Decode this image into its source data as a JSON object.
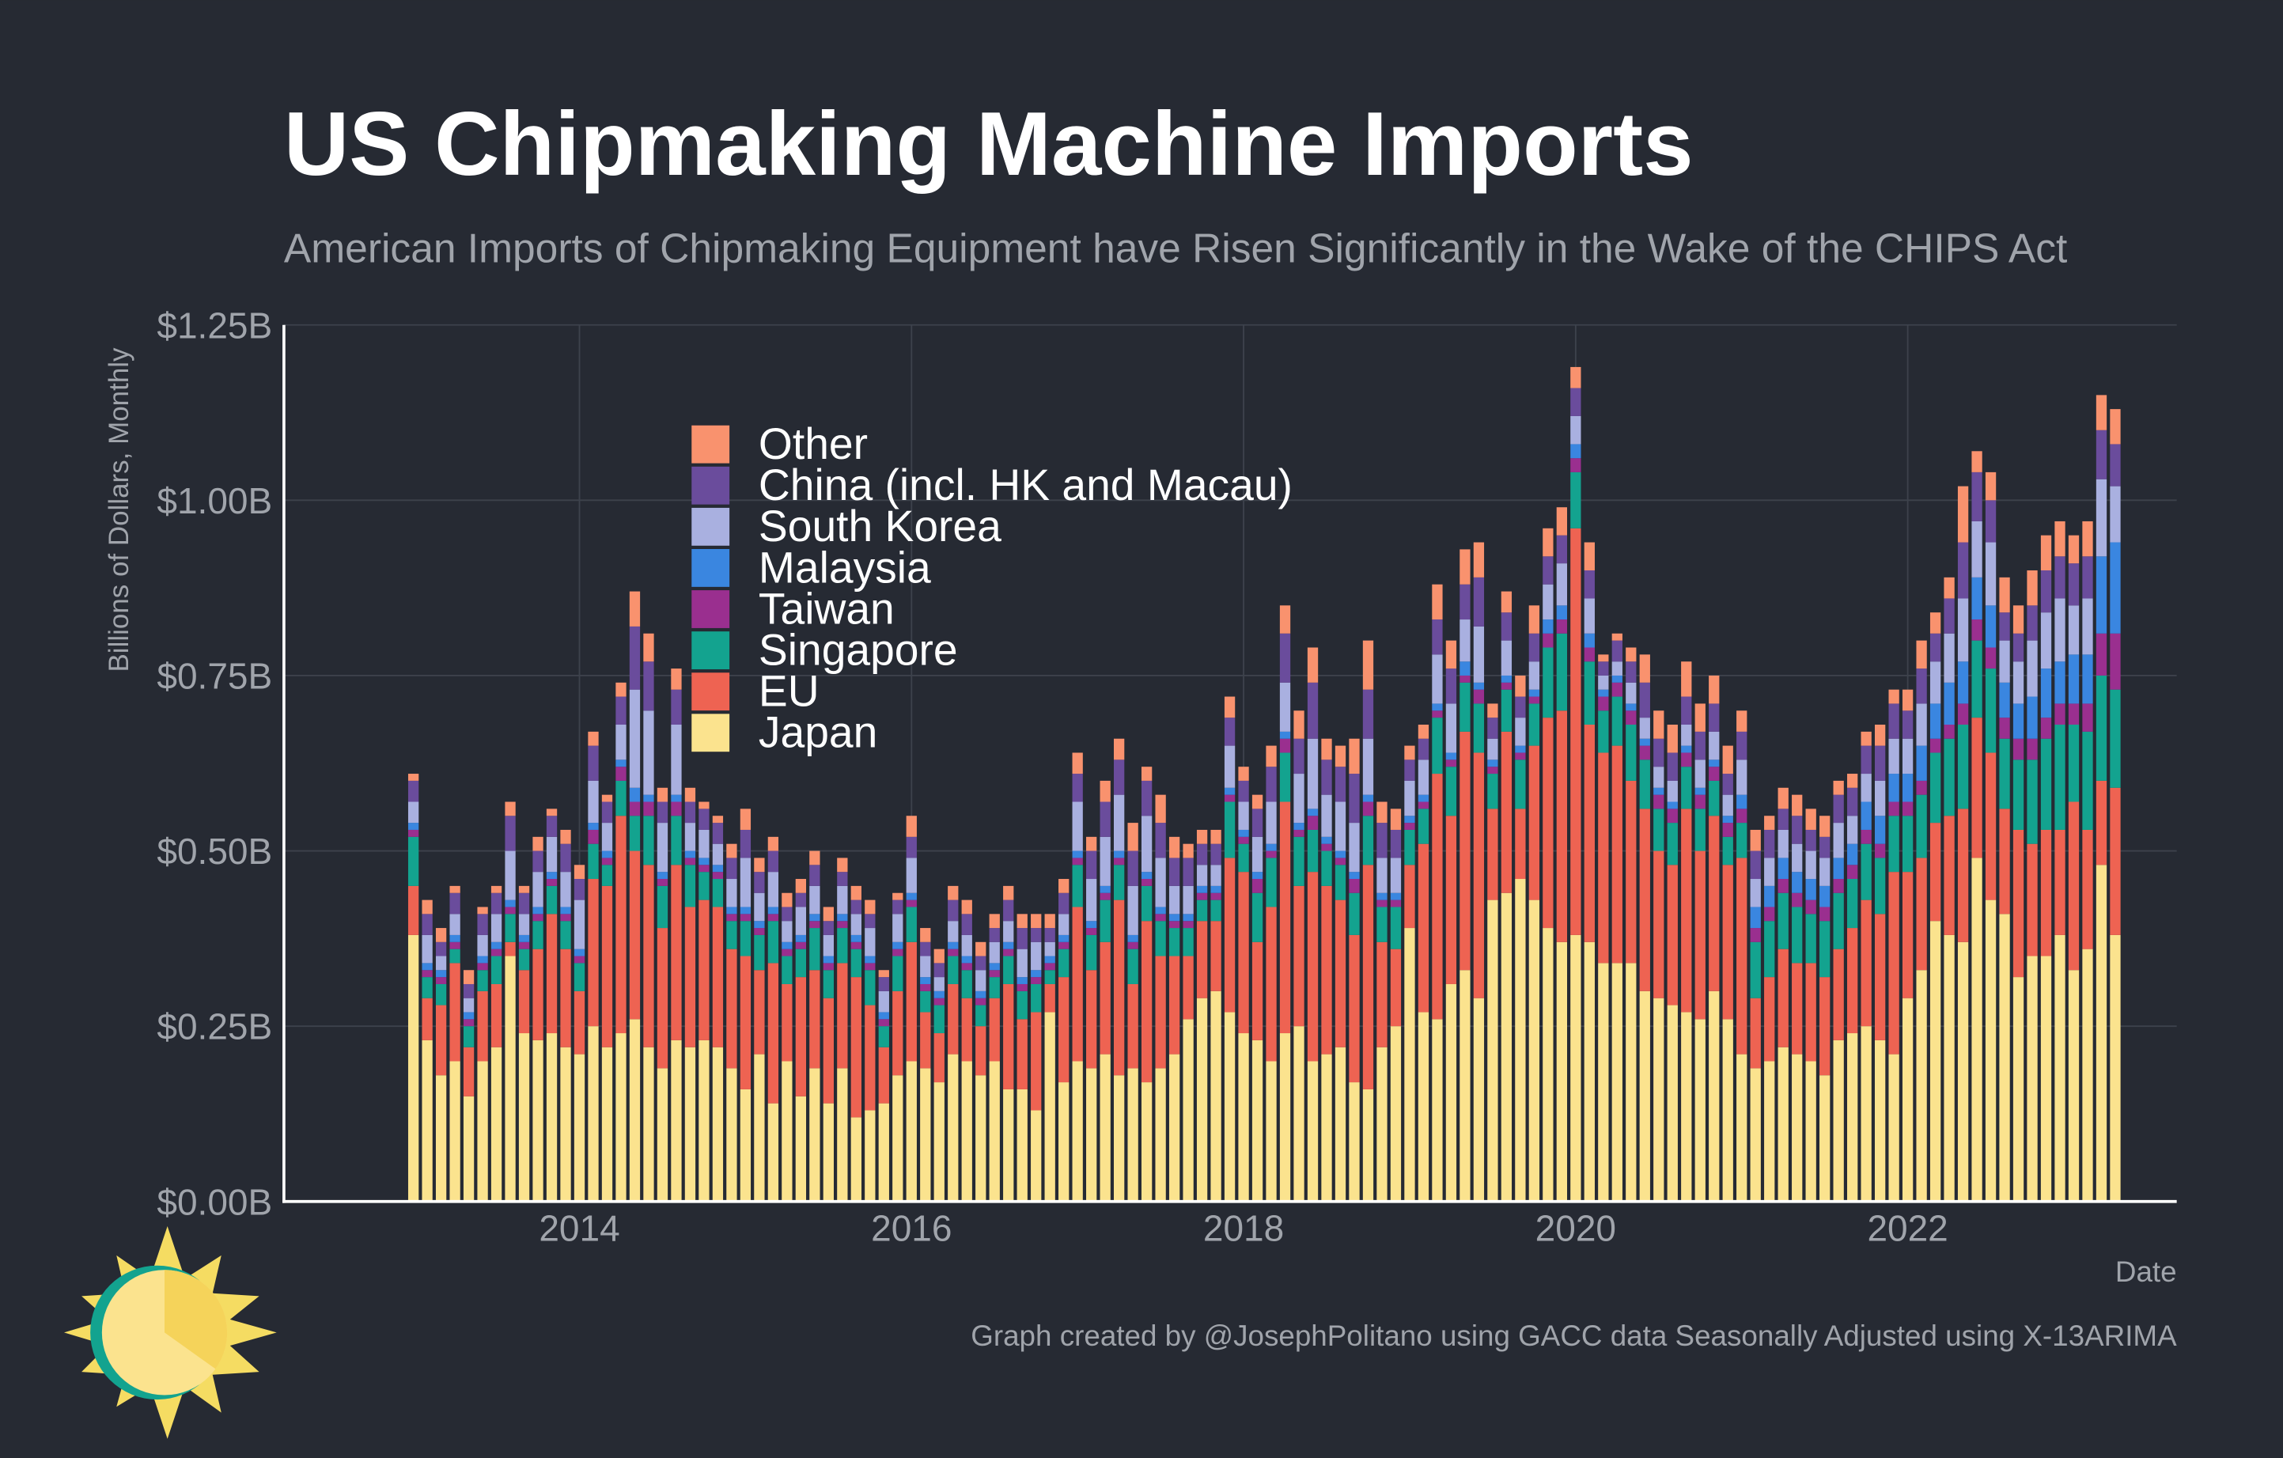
{
  "chart_data": {
    "type": "stacked_bar",
    "title": "US Chipmaking Machine Imports",
    "subtitle": "American Imports of Chipmaking Equipment have Risen Significantly in the Wake of the CHIPS Act",
    "ylabel": "Billions of Dollars, Monthly",
    "xlabel": "Date",
    "caption": "Graph created by @JosephPolitano using GACC data Seasonally Adjusted using X-13ARIMA",
    "grid": true,
    "x": [
      "2013-01",
      "2013-02",
      "2013-03",
      "2013-04",
      "2013-05",
      "2013-06",
      "2013-07",
      "2013-08",
      "2013-09",
      "2013-10",
      "2013-11",
      "2013-12",
      "2014-01",
      "2014-02",
      "2014-03",
      "2014-04",
      "2014-05",
      "2014-06",
      "2014-07",
      "2014-08",
      "2014-09",
      "2014-10",
      "2014-11",
      "2014-12",
      "2015-01",
      "2015-02",
      "2015-03",
      "2015-04",
      "2015-05",
      "2015-06",
      "2015-07",
      "2015-08",
      "2015-09",
      "2015-10",
      "2015-11",
      "2015-12",
      "2016-01",
      "2016-02",
      "2016-03",
      "2016-04",
      "2016-05",
      "2016-06",
      "2016-07",
      "2016-08",
      "2016-09",
      "2016-10",
      "2016-11",
      "2016-12",
      "2017-01",
      "2017-02",
      "2017-03",
      "2017-04",
      "2017-05",
      "2017-06",
      "2017-07",
      "2017-08",
      "2017-09",
      "2017-10",
      "2017-11",
      "2017-12",
      "2018-01",
      "2018-02",
      "2018-03",
      "2018-04",
      "2018-05",
      "2018-06",
      "2018-07",
      "2018-08",
      "2018-09",
      "2018-10",
      "2018-11",
      "2018-12",
      "2019-01",
      "2019-02",
      "2019-03",
      "2019-04",
      "2019-05",
      "2019-06",
      "2019-07",
      "2019-08",
      "2019-09",
      "2019-10",
      "2019-11",
      "2019-12",
      "2020-01",
      "2020-02",
      "2020-03",
      "2020-04",
      "2020-05",
      "2020-06",
      "2020-07",
      "2020-08",
      "2020-09",
      "2020-10",
      "2020-11",
      "2020-12",
      "2021-01",
      "2021-02",
      "2021-03",
      "2021-04",
      "2021-05",
      "2021-06",
      "2021-07",
      "2021-08",
      "2021-09",
      "2021-10",
      "2021-11",
      "2021-12",
      "2022-01",
      "2022-02",
      "2022-03",
      "2022-04",
      "2022-05",
      "2022-06",
      "2022-07",
      "2022-08",
      "2022-09",
      "2022-10",
      "2022-11",
      "2022-12",
      "2023-01",
      "2023-02",
      "2023-03",
      "2023-04"
    ],
    "xlim": [
      2012.22,
      2023.62
    ],
    "xticks": [
      2014,
      2016,
      2018,
      2020,
      2022
    ],
    "ylim": [
      0,
      1.25
    ],
    "yticks": [
      {
        "value": 0,
        "label": "$0.00B"
      },
      {
        "value": 0.25,
        "label": "$0.25B"
      },
      {
        "value": 0.5,
        "label": "$0.50B"
      },
      {
        "value": 0.75,
        "label": "$0.75B"
      },
      {
        "value": 1.0,
        "label": "$1.00B"
      },
      {
        "value": 1.25,
        "label": "$1.25B"
      }
    ],
    "series": [
      {
        "name": "Japan",
        "color": "#fbe38e",
        "values": [
          0.38,
          0.23,
          0.18,
          0.2,
          0.15,
          0.2,
          0.22,
          0.35,
          0.24,
          0.23,
          0.24,
          0.22,
          0.21,
          0.25,
          0.22,
          0.24,
          0.26,
          0.22,
          0.19,
          0.23,
          0.22,
          0.23,
          0.22,
          0.19,
          0.16,
          0.21,
          0.14,
          0.2,
          0.15,
          0.19,
          0.14,
          0.19,
          0.12,
          0.13,
          0.14,
          0.18,
          0.2,
          0.19,
          0.17,
          0.21,
          0.2,
          0.18,
          0.2,
          0.16,
          0.16,
          0.13,
          0.27,
          0.17,
          0.2,
          0.19,
          0.21,
          0.18,
          0.19,
          0.17,
          0.19,
          0.21,
          0.26,
          0.29,
          0.3,
          0.27,
          0.24,
          0.23,
          0.2,
          0.24,
          0.25,
          0.2,
          0.21,
          0.22,
          0.17,
          0.16,
          0.22,
          0.25,
          0.39,
          0.27,
          0.26,
          0.31,
          0.33,
          0.29,
          0.43,
          0.44,
          0.46,
          0.43,
          0.39,
          0.37,
          0.38,
          0.37,
          0.34,
          0.34,
          0.34,
          0.3,
          0.29,
          0.28,
          0.27,
          0.26,
          0.3,
          0.26,
          0.21,
          0.19,
          0.2,
          0.22,
          0.21,
          0.2,
          0.18,
          0.23,
          0.24,
          0.25,
          0.23,
          0.21,
          0.29,
          0.33,
          0.4,
          0.38,
          0.37,
          0.49,
          0.43,
          0.41,
          0.32,
          0.35,
          0.35,
          0.38,
          0.33,
          0.36,
          0.48,
          0.38
        ]
      },
      {
        "name": "EU",
        "color": "#ee6352",
        "values": [
          0.07,
          0.06,
          0.1,
          0.14,
          0.07,
          0.1,
          0.09,
          0.02,
          0.09,
          0.13,
          0.17,
          0.14,
          0.09,
          0.21,
          0.23,
          0.31,
          0.24,
          0.26,
          0.2,
          0.25,
          0.2,
          0.2,
          0.2,
          0.17,
          0.19,
          0.12,
          0.2,
          0.11,
          0.17,
          0.14,
          0.15,
          0.15,
          0.2,
          0.15,
          0.08,
          0.12,
          0.17,
          0.08,
          0.07,
          0.1,
          0.09,
          0.07,
          0.09,
          0.15,
          0.1,
          0.14,
          0.04,
          0.15,
          0.22,
          0.14,
          0.16,
          0.25,
          0.12,
          0.23,
          0.16,
          0.14,
          0.09,
          0.11,
          0.1,
          0.22,
          0.23,
          0.14,
          0.22,
          0.33,
          0.2,
          0.27,
          0.24,
          0.21,
          0.21,
          0.32,
          0.15,
          0.11,
          0.09,
          0.24,
          0.35,
          0.24,
          0.34,
          0.35,
          0.13,
          0.23,
          0.1,
          0.22,
          0.3,
          0.33,
          0.58,
          0.31,
          0.3,
          0.31,
          0.26,
          0.26,
          0.21,
          0.2,
          0.29,
          0.24,
          0.25,
          0.22,
          0.28,
          0.1,
          0.12,
          0.14,
          0.13,
          0.14,
          0.14,
          0.13,
          0.15,
          0.18,
          0.18,
          0.26,
          0.18,
          0.16,
          0.14,
          0.17,
          0.19,
          0.2,
          0.21,
          0.15,
          0.21,
          0.16,
          0.18,
          0.15,
          0.24,
          0.17,
          0.12,
          0.21
        ]
      },
      {
        "name": "Singapore",
        "color": "#13a38f",
        "values": [
          0.07,
          0.03,
          0.03,
          0.02,
          0.03,
          0.03,
          0.04,
          0.04,
          0.03,
          0.04,
          0.04,
          0.04,
          0.04,
          0.05,
          0.03,
          0.05,
          0.05,
          0.07,
          0.06,
          0.07,
          0.06,
          0.04,
          0.04,
          0.04,
          0.05,
          0.05,
          0.06,
          0.04,
          0.04,
          0.06,
          0.04,
          0.05,
          0.04,
          0.05,
          0.03,
          0.05,
          0.05,
          0.03,
          0.04,
          0.04,
          0.04,
          0.03,
          0.03,
          0.04,
          0.04,
          0.04,
          0.02,
          0.04,
          0.06,
          0.05,
          0.06,
          0.05,
          0.05,
          0.05,
          0.05,
          0.04,
          0.04,
          0.03,
          0.03,
          0.08,
          0.04,
          0.07,
          0.07,
          0.07,
          0.07,
          0.06,
          0.05,
          0.05,
          0.06,
          0.07,
          0.05,
          0.06,
          0.05,
          0.05,
          0.08,
          0.07,
          0.07,
          0.07,
          0.05,
          0.06,
          0.07,
          0.06,
          0.1,
          0.11,
          0.08,
          0.09,
          0.06,
          0.07,
          0.08,
          0.07,
          0.06,
          0.06,
          0.06,
          0.06,
          0.05,
          0.04,
          0.05,
          0.08,
          0.08,
          0.08,
          0.08,
          0.07,
          0.08,
          0.08,
          0.07,
          0.08,
          0.08,
          0.08,
          0.08,
          0.09,
          0.1,
          0.11,
          0.12,
          0.11,
          0.12,
          0.1,
          0.1,
          0.12,
          0.13,
          0.15,
          0.11,
          0.14,
          0.15,
          0.14
        ]
      },
      {
        "name": "Taiwan",
        "color": "#9a2f8f",
        "values": [
          0.01,
          0.01,
          0.01,
          0.01,
          0.01,
          0.01,
          0.01,
          0.01,
          0.01,
          0.01,
          0.01,
          0.01,
          0.01,
          0.02,
          0.01,
          0.02,
          0.02,
          0.02,
          0.01,
          0.02,
          0.01,
          0.01,
          0.01,
          0.01,
          0.01,
          0.01,
          0.01,
          0.01,
          0.01,
          0.01,
          0.01,
          0.01,
          0.01,
          0.01,
          0.01,
          0.01,
          0.01,
          0.01,
          0.01,
          0.01,
          0.01,
          0.01,
          0.01,
          0.01,
          0.01,
          0.01,
          0.01,
          0.01,
          0.01,
          0.01,
          0.01,
          0.01,
          0.01,
          0.01,
          0.01,
          0.01,
          0.01,
          0.01,
          0.01,
          0.01,
          0.01,
          0.02,
          0.01,
          0.02,
          0.01,
          0.02,
          0.01,
          0.01,
          0.02,
          0.02,
          0.01,
          0.01,
          0.01,
          0.01,
          0.01,
          0.01,
          0.01,
          0.02,
          0.01,
          0.01,
          0.01,
          0.01,
          0.02,
          0.02,
          0.02,
          0.02,
          0.02,
          0.02,
          0.02,
          0.02,
          0.02,
          0.02,
          0.02,
          0.02,
          0.02,
          0.02,
          0.02,
          0.02,
          0.02,
          0.02,
          0.02,
          0.02,
          0.02,
          0.02,
          0.02,
          0.02,
          0.02,
          0.02,
          0.02,
          0.02,
          0.02,
          0.02,
          0.03,
          0.03,
          0.03,
          0.03,
          0.03,
          0.03,
          0.03,
          0.03,
          0.03,
          0.04,
          0.06,
          0.08
        ]
      },
      {
        "name": "Malaysia",
        "color": "#3a86e0",
        "values": [
          0.01,
          0.01,
          0.01,
          0.01,
          0.01,
          0.01,
          0.01,
          0.01,
          0.01,
          0.01,
          0.01,
          0.01,
          0.01,
          0.01,
          0.01,
          0.01,
          0.02,
          0.01,
          0.01,
          0.01,
          0.01,
          0.01,
          0.01,
          0.01,
          0.01,
          0.01,
          0.01,
          0.01,
          0.01,
          0.01,
          0.01,
          0.01,
          0.01,
          0.01,
          0.01,
          0.01,
          0.01,
          0.01,
          0.01,
          0.01,
          0.01,
          0.01,
          0.01,
          0.01,
          0.01,
          0.01,
          0.01,
          0.01,
          0.01,
          0.01,
          0.01,
          0.01,
          0.01,
          0.01,
          0.01,
          0.01,
          0.01,
          0.01,
          0.01,
          0.01,
          0.01,
          0.01,
          0.01,
          0.01,
          0.01,
          0.01,
          0.01,
          0.01,
          0.01,
          0.01,
          0.01,
          0.01,
          0.01,
          0.01,
          0.01,
          0.01,
          0.02,
          0.01,
          0.01,
          0.01,
          0.01,
          0.01,
          0.02,
          0.02,
          0.02,
          0.02,
          0.01,
          0.01,
          0.01,
          0.01,
          0.01,
          0.01,
          0.01,
          0.01,
          0.01,
          0.01,
          0.02,
          0.03,
          0.03,
          0.03,
          0.03,
          0.03,
          0.03,
          0.03,
          0.03,
          0.04,
          0.04,
          0.04,
          0.04,
          0.05,
          0.05,
          0.06,
          0.06,
          0.06,
          0.06,
          0.05,
          0.05,
          0.06,
          0.07,
          0.06,
          0.07,
          0.07,
          0.11,
          0.13
        ]
      },
      {
        "name": "South Korea",
        "color": "#a9b0e0",
        "values": [
          0.03,
          0.04,
          0.02,
          0.03,
          0.02,
          0.03,
          0.04,
          0.07,
          0.03,
          0.05,
          0.05,
          0.05,
          0.07,
          0.06,
          0.04,
          0.05,
          0.14,
          0.12,
          0.07,
          0.1,
          0.04,
          0.04,
          0.03,
          0.04,
          0.07,
          0.04,
          0.05,
          0.03,
          0.04,
          0.04,
          0.03,
          0.04,
          0.03,
          0.04,
          0.03,
          0.04,
          0.05,
          0.03,
          0.02,
          0.03,
          0.03,
          0.03,
          0.03,
          0.03,
          0.04,
          0.04,
          0.02,
          0.03,
          0.07,
          0.06,
          0.07,
          0.08,
          0.07,
          0.08,
          0.07,
          0.04,
          0.04,
          0.03,
          0.03,
          0.06,
          0.04,
          0.05,
          0.06,
          0.07,
          0.07,
          0.1,
          0.06,
          0.07,
          0.07,
          0.08,
          0.05,
          0.05,
          0.05,
          0.05,
          0.07,
          0.07,
          0.06,
          0.08,
          0.03,
          0.05,
          0.04,
          0.04,
          0.05,
          0.06,
          0.04,
          0.05,
          0.02,
          0.02,
          0.03,
          0.03,
          0.03,
          0.03,
          0.03,
          0.04,
          0.04,
          0.03,
          0.05,
          0.04,
          0.04,
          0.04,
          0.04,
          0.04,
          0.04,
          0.05,
          0.04,
          0.04,
          0.05,
          0.05,
          0.05,
          0.06,
          0.06,
          0.07,
          0.09,
          0.08,
          0.09,
          0.06,
          0.06,
          0.08,
          0.08,
          0.09,
          0.07,
          0.08,
          0.11,
          0.08
        ]
      },
      {
        "name": "China (incl. HK and Macau)",
        "color": "#6a4c9c",
        "values": [
          0.03,
          0.03,
          0.02,
          0.03,
          0.02,
          0.03,
          0.03,
          0.05,
          0.03,
          0.03,
          0.03,
          0.04,
          0.03,
          0.05,
          0.03,
          0.04,
          0.09,
          0.07,
          0.03,
          0.05,
          0.03,
          0.03,
          0.03,
          0.03,
          0.04,
          0.03,
          0.03,
          0.02,
          0.02,
          0.03,
          0.02,
          0.02,
          0.02,
          0.02,
          0.02,
          0.02,
          0.03,
          0.02,
          0.02,
          0.03,
          0.03,
          0.02,
          0.02,
          0.03,
          0.03,
          0.02,
          0.02,
          0.03,
          0.04,
          0.04,
          0.05,
          0.05,
          0.05,
          0.05,
          0.05,
          0.04,
          0.04,
          0.03,
          0.03,
          0.04,
          0.03,
          0.04,
          0.05,
          0.07,
          0.05,
          0.08,
          0.05,
          0.05,
          0.07,
          0.07,
          0.05,
          0.04,
          0.03,
          0.03,
          0.05,
          0.05,
          0.05,
          0.07,
          0.03,
          0.04,
          0.03,
          0.04,
          0.04,
          0.04,
          0.04,
          0.04,
          0.02,
          0.03,
          0.03,
          0.05,
          0.04,
          0.04,
          0.04,
          0.04,
          0.04,
          0.03,
          0.04,
          0.04,
          0.04,
          0.03,
          0.04,
          0.03,
          0.03,
          0.04,
          0.04,
          0.04,
          0.05,
          0.05,
          0.04,
          0.05,
          0.04,
          0.05,
          0.08,
          0.07,
          0.06,
          0.04,
          0.04,
          0.05,
          0.06,
          0.06,
          0.06,
          0.06,
          0.07,
          0.06
        ]
      },
      {
        "name": "Other",
        "color": "#f9926e",
        "values": [
          0.01,
          0.02,
          0.02,
          0.01,
          0.02,
          0.01,
          0.01,
          0.02,
          0.01,
          0.02,
          0.01,
          0.02,
          0.02,
          0.02,
          0.01,
          0.02,
          0.05,
          0.04,
          0.02,
          0.03,
          0.02,
          0.01,
          0.01,
          0.02,
          0.03,
          0.02,
          0.02,
          0.02,
          0.02,
          0.02,
          0.02,
          0.02,
          0.02,
          0.02,
          0.01,
          0.01,
          0.03,
          0.02,
          0.02,
          0.02,
          0.02,
          0.02,
          0.02,
          0.02,
          0.02,
          0.02,
          0.02,
          0.02,
          0.03,
          0.02,
          0.03,
          0.03,
          0.04,
          0.02,
          0.04,
          0.03,
          0.02,
          0.02,
          0.02,
          0.03,
          0.02,
          0.02,
          0.03,
          0.04,
          0.04,
          0.05,
          0.03,
          0.03,
          0.05,
          0.07,
          0.03,
          0.03,
          0.02,
          0.02,
          0.05,
          0.04,
          0.05,
          0.05,
          0.02,
          0.03,
          0.03,
          0.04,
          0.04,
          0.04,
          0.03,
          0.04,
          0.01,
          0.01,
          0.02,
          0.04,
          0.04,
          0.04,
          0.05,
          0.04,
          0.04,
          0.04,
          0.03,
          0.03,
          0.02,
          0.03,
          0.03,
          0.03,
          0.03,
          0.02,
          0.02,
          0.02,
          0.03,
          0.02,
          0.03,
          0.04,
          0.03,
          0.03,
          0.08,
          0.03,
          0.04,
          0.05,
          0.04,
          0.05,
          0.05,
          0.05,
          0.04,
          0.05,
          0.05,
          0.05
        ]
      }
    ]
  }
}
